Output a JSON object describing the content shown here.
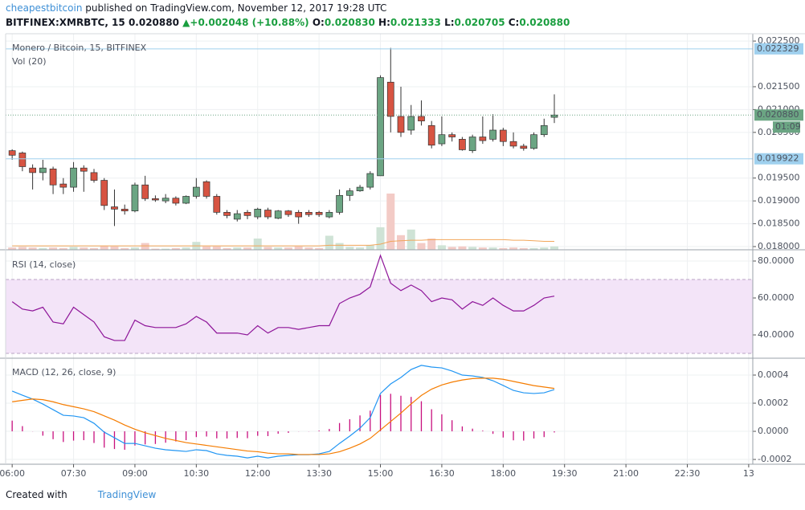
{
  "header": {
    "author": "cheapestbitcoin",
    "published": "published on TradingView.com, November 12, 2017 19:28 UTC",
    "symbol": "BITFINEX:XMRBTC, 15",
    "last": "0.020880",
    "arrow": "▲",
    "change": "+0.002048 (+10.88%)",
    "open_label": "O:",
    "open": "0.020830",
    "high_label": "H:",
    "high": "0.021333",
    "low_label": "L:",
    "low": "0.020705",
    "close_label": "C:",
    "close": "0.020880"
  },
  "footer": {
    "created": "Created with",
    "brand": "TradingView"
  },
  "chart_data": [
    {
      "type": "candlestick",
      "title": "Monero / Bitcoin, 15, BITFINEX",
      "x": [
        6,
        6.25,
        6.5,
        6.75,
        7,
        7.25,
        7.5,
        7.75,
        8,
        8.25,
        8.5,
        8.75,
        9,
        9.25,
        9.5,
        9.75,
        10,
        10.25,
        10.5,
        10.75,
        11,
        11.25,
        11.5,
        11.75,
        12,
        12.25,
        12.5,
        12.75,
        13,
        13.25,
        13.5,
        13.75,
        14,
        14.25,
        14.5,
        14.75,
        15,
        15.25,
        15.5,
        15.75,
        16,
        16.25,
        16.5,
        16.75,
        17,
        17.25,
        17.5,
        17.75,
        18,
        18.25,
        18.5,
        18.75,
        19,
        19.25
      ],
      "open": [
        0.0201,
        0.02005,
        0.01972,
        0.01962,
        0.0197,
        0.01937,
        0.0193,
        0.01972,
        0.01962,
        0.01945,
        0.01887,
        0.01882,
        0.01878,
        0.01935,
        0.01905,
        0.019,
        0.01906,
        0.01895,
        0.0191,
        0.01942,
        0.0191,
        0.01875,
        0.0186,
        0.01875,
        0.01865,
        0.0188,
        0.01862,
        0.01878,
        0.01875,
        0.01875,
        0.01875,
        0.01865,
        0.01875,
        0.01912,
        0.01922,
        0.0193,
        0.01955,
        0.0216,
        0.02085,
        0.02055,
        0.02085,
        0.02065,
        0.02025,
        0.02045,
        0.02035,
        0.0201,
        0.0204,
        0.02035,
        0.02055,
        0.0203,
        0.0202,
        0.02015,
        0.02045,
        0.02083
      ],
      "high": [
        0.02013,
        0.02008,
        0.0198,
        0.0199,
        0.01975,
        0.0195,
        0.01985,
        0.01978,
        0.0197,
        0.0195,
        0.01925,
        0.01892,
        0.0194,
        0.01955,
        0.01912,
        0.01915,
        0.0191,
        0.01912,
        0.0195,
        0.01945,
        0.01915,
        0.0188,
        0.0188,
        0.0188,
        0.01885,
        0.01885,
        0.0188,
        0.0188,
        0.0188,
        0.0188,
        0.01878,
        0.0188,
        0.01925,
        0.01928,
        0.01935,
        0.01965,
        0.02175,
        0.02235,
        0.0215,
        0.0211,
        0.0212,
        0.02075,
        0.02085,
        0.0205,
        0.0204,
        0.02045,
        0.02085,
        0.0209,
        0.0206,
        0.0205,
        0.02025,
        0.0205,
        0.0208,
        0.021333
      ],
      "low": [
        0.0199,
        0.01965,
        0.01925,
        0.01945,
        0.01915,
        0.01915,
        0.0192,
        0.0192,
        0.0194,
        0.0188,
        0.01845,
        0.0187,
        0.01875,
        0.019,
        0.01898,
        0.01895,
        0.0189,
        0.01893,
        0.01905,
        0.01905,
        0.0187,
        0.01862,
        0.01855,
        0.0186,
        0.0186,
        0.0186,
        0.0186,
        0.01865,
        0.0185,
        0.01865,
        0.01865,
        0.01862,
        0.0187,
        0.019,
        0.0192,
        0.01925,
        0.01955,
        0.0205,
        0.0204,
        0.02045,
        0.02065,
        0.02015,
        0.0202,
        0.0203,
        0.0201,
        0.02005,
        0.02025,
        0.0203,
        0.0202,
        0.02015,
        0.0201,
        0.02012,
        0.0204,
        0.020705
      ],
      "close": [
        0.02,
        0.01975,
        0.01962,
        0.01972,
        0.01935,
        0.0193,
        0.01972,
        0.01965,
        0.01945,
        0.0189,
        0.01882,
        0.01878,
        0.01935,
        0.01905,
        0.01902,
        0.01906,
        0.01895,
        0.0191,
        0.0193,
        0.0191,
        0.01875,
        0.01868,
        0.01872,
        0.01868,
        0.01882,
        0.01865,
        0.01878,
        0.0187,
        0.01865,
        0.0187,
        0.0187,
        0.01875,
        0.01912,
        0.01922,
        0.0193,
        0.0196,
        0.0217,
        0.02085,
        0.0205,
        0.02085,
        0.02075,
        0.02022,
        0.02045,
        0.0204,
        0.02012,
        0.0204,
        0.02032,
        0.02055,
        0.0203,
        0.0202,
        0.02015,
        0.02045,
        0.02065,
        0.02088
      ],
      "up_color": "#6ba583",
      "down_color": "#d75442",
      "wick_color": "#333333",
      "volume": {
        "name": "Vol (20)",
        "values": [
          4,
          5,
          4,
          3,
          4,
          3,
          5,
          4,
          3,
          7,
          6,
          3,
          4,
          12,
          2,
          2,
          3,
          4,
          14,
          6,
          6,
          3,
          4,
          4,
          20,
          5,
          4,
          4,
          6,
          4,
          3,
          25,
          12,
          5,
          4,
          8,
          40,
          100,
          26,
          36,
          12,
          20,
          8,
          5,
          6,
          5,
          4,
          4,
          3,
          4,
          3,
          3,
          4,
          6
        ],
        "ma": [
          7,
          7,
          7,
          7,
          7,
          7,
          7,
          7,
          7,
          7,
          7,
          7,
          7,
          7,
          7,
          7,
          7,
          7,
          7,
          7,
          7,
          7,
          7,
          7,
          7,
          7,
          7,
          7,
          7,
          7,
          7,
          8,
          8,
          8,
          8,
          8,
          10,
          15,
          16,
          17,
          17,
          18,
          18,
          18,
          18,
          18,
          18,
          18,
          18,
          17,
          17,
          16,
          15,
          15
        ],
        "up_color": "#cfe3d6",
        "down_color": "#f3cbc6",
        "ma_color": "#f2a65a"
      },
      "xlim": [
        5.84,
        24.1
      ],
      "ylim": [
        0.01793,
        0.02266
      ],
      "yticks": [
        {
          "value": 0.0225,
          "label": "0.022500"
        },
        {
          "value": 0.0215,
          "label": "0.021500"
        },
        {
          "value": 0.021,
          "label": "0.021000"
        },
        {
          "value": 0.0205,
          "label": "0.020500"
        },
        {
          "value": 0.0195,
          "label": "0.019500"
        },
        {
          "value": 0.019,
          "label": "0.019000"
        },
        {
          "value": 0.0185,
          "label": "0.018500"
        },
        {
          "value": 0.018,
          "label": "0.018000"
        }
      ],
      "price_lines": [
        {
          "value": 0.022329,
          "label": "0.022329",
          "color": "#9fd0ee",
          "dashed": false
        },
        {
          "value": 0.02088,
          "label": "0.020880",
          "color": "#6ba583",
          "dashed": true
        },
        {
          "value": 0.019922,
          "label": "0.019922",
          "color": "#9fd0ee",
          "dashed": false
        }
      ],
      "countdown": "01:09",
      "grid": true
    },
    {
      "type": "line",
      "title": "RSI (14, close)",
      "x": [
        6,
        6.25,
        6.5,
        6.75,
        7,
        7.25,
        7.5,
        7.75,
        8,
        8.25,
        8.5,
        8.75,
        9,
        9.25,
        9.5,
        9.75,
        10,
        10.25,
        10.5,
        10.75,
        11,
        11.25,
        11.5,
        11.75,
        12,
        12.25,
        12.5,
        12.75,
        13,
        13.25,
        13.5,
        13.75,
        14,
        14.25,
        14.5,
        14.75,
        15,
        15.25,
        15.5,
        15.75,
        16,
        16.25,
        16.5,
        16.75,
        17,
        17.25,
        17.5,
        17.75,
        18,
        18.25,
        18.5,
        18.75,
        19,
        19.25
      ],
      "values": [
        58,
        54,
        53,
        55,
        47,
        46,
        55,
        51,
        47,
        39,
        37,
        37,
        48,
        45,
        44,
        44,
        44,
        46,
        50,
        47,
        41,
        41,
        41,
        40,
        45,
        41,
        44,
        44,
        43,
        44,
        45,
        45,
        57,
        60,
        62,
        66,
        83,
        68,
        64,
        67,
        64,
        58,
        60,
        59,
        54,
        58,
        56,
        60,
        56,
        53,
        53,
        56,
        60,
        61
      ],
      "color": "#8e1599",
      "band": [
        30,
        70
      ],
      "band_color": "#f3e4f8",
      "xlim": [
        5.84,
        24.1
      ],
      "ylim": [
        27.4,
        85.65
      ],
      "yticks": [
        {
          "value": 80,
          "label": "80.0000"
        },
        {
          "value": 60,
          "label": "60.0000"
        },
        {
          "value": 40,
          "label": "40.0000"
        }
      ],
      "grid": true
    },
    {
      "type": "line",
      "title": "MACD (12, 26, close, 9)",
      "x": [
        6,
        6.25,
        6.5,
        6.75,
        7,
        7.25,
        7.5,
        7.75,
        8,
        8.25,
        8.5,
        8.75,
        9,
        9.25,
        9.5,
        9.75,
        10,
        10.25,
        10.5,
        10.75,
        11,
        11.25,
        11.5,
        11.75,
        12,
        12.25,
        12.5,
        12.75,
        13,
        13.25,
        13.5,
        13.75,
        14,
        14.25,
        14.5,
        14.75,
        15,
        15.25,
        15.5,
        15.75,
        16,
        16.25,
        16.5,
        16.75,
        17,
        17.25,
        17.5,
        17.75,
        18,
        18.25,
        18.5,
        18.75,
        19,
        19.25
      ],
      "series": [
        {
          "color": "#c8107e",
          "bars": true,
          "values": [
            7.6e-05,
            3.7e-05,
            -1e-06,
            -3.1e-05,
            -5.6e-05,
            -7.6e-05,
            -6.6e-05,
            -6.3e-05,
            -8.3e-05,
            -0.000116,
            -0.000126,
            -0.000131,
            -0.000101,
            -9.3e-05,
            -9e-05,
            -8.1e-05,
            -7.2e-05,
            -6.3e-05,
            -4.1e-05,
            -3.7e-05,
            -5e-05,
            -5.1e-05,
            -4.7e-05,
            -4.9e-05,
            -3.2e-05,
            -3.4e-05,
            -1.7e-05,
            -1.1e-05,
            -1e-06,
            -1e-06,
            5e-06,
            1.7e-05,
            5.9e-05,
            8.6e-05,
            0.000113,
            0.000147,
            0.000259,
            0.000267,
            0.000253,
            0.000245,
            0.000214,
            0.000157,
            0.000121,
            7.9e-05,
            3.5e-05,
            1.9e-05,
            5e-06,
            -1.8e-05,
            -4.4e-05,
            -6.4e-05,
            -6.6e-05,
            -5.1e-05,
            -4.1e-05,
            -8e-06
          ]
        },
        {
          "color": "#2196f3",
          "values": [
            0.000286,
            0.000257,
            0.000229,
            0.000194,
            0.000154,
            0.000114,
            0.000109,
            9.7e-05,
            5.7e-05,
            -6e-06,
            -4.6e-05,
            -8.6e-05,
            -8.6e-05,
            -0.000103,
            -0.00012,
            -0.000131,
            -0.000137,
            -0.000143,
            -0.000131,
            -0.000137,
            -0.00016,
            -0.000171,
            -0.000177,
            -0.000189,
            -0.000177,
            -0.000189,
            -0.000177,
            -0.000171,
            -0.000166,
            -0.000166,
            -0.00016,
            -0.000143,
            -8.6e-05,
            -3.4e-05,
            2.3e-05,
            9.7e-05,
            0.000269,
            0.000337,
            0.000383,
            0.00044,
            0.000469,
            0.000457,
            0.000451,
            0.000429,
            0.0004,
            0.000394,
            0.000383,
            0.00036,
            0.000326,
            0.000291,
            0.000274,
            0.000269,
            0.000274,
            0.000297
          ]
        },
        {
          "color": "#f57c00",
          "values": [
            0.00021,
            0.00022,
            0.00023,
            0.000225,
            0.00021,
            0.00019,
            0.000175,
            0.00016,
            0.00014,
            0.00011,
            8e-05,
            4.5e-05,
            1.5e-05,
            -1e-05,
            -3e-05,
            -5e-05,
            -6.5e-05,
            -8e-05,
            -9e-05,
            -0.0001,
            -0.00011,
            -0.00012,
            -0.00013,
            -0.00014,
            -0.000145,
            -0.000155,
            -0.00016,
            -0.00016,
            -0.000165,
            -0.000165,
            -0.000165,
            -0.00016,
            -0.000145,
            -0.00012,
            -9e-05,
            -5e-05,
            1e-05,
            7e-05,
            0.00013,
            0.000195,
            0.000255,
            0.0003,
            0.00033,
            0.00035,
            0.000365,
            0.000375,
            0.000378,
            0.000378,
            0.00037,
            0.000355,
            0.00034,
            0.000325,
            0.000315,
            0.000305
          ]
        }
      ],
      "xlim": [
        5.84,
        24.1
      ],
      "ylim": [
        -0.000234,
        0.00052
      ],
      "yticks": [
        {
          "value": 0.0004,
          "label": "0.0004"
        },
        {
          "value": 0.0002,
          "label": "0.0002"
        },
        {
          "value": 0,
          "label": "0.0000"
        },
        {
          "value": -0.0002,
          "label": "-0.0002"
        }
      ],
      "xticks": [
        {
          "value": 6,
          "label": "06:00"
        },
        {
          "value": 7.5,
          "label": "07:30"
        },
        {
          "value": 9,
          "label": "09:00"
        },
        {
          "value": 10.5,
          "label": "10:30"
        },
        {
          "value": 12,
          "label": "12:00"
        },
        {
          "value": 13.5,
          "label": "13:30"
        },
        {
          "value": 15,
          "label": "15:00"
        },
        {
          "value": 16.5,
          "label": "16:30"
        },
        {
          "value": 18,
          "label": "18:00"
        },
        {
          "value": 19.5,
          "label": "19:30"
        },
        {
          "value": 21,
          "label": "21:00"
        },
        {
          "value": 22.5,
          "label": "22:30"
        },
        {
          "value": 24,
          "label": "13"
        }
      ],
      "grid": true
    }
  ]
}
